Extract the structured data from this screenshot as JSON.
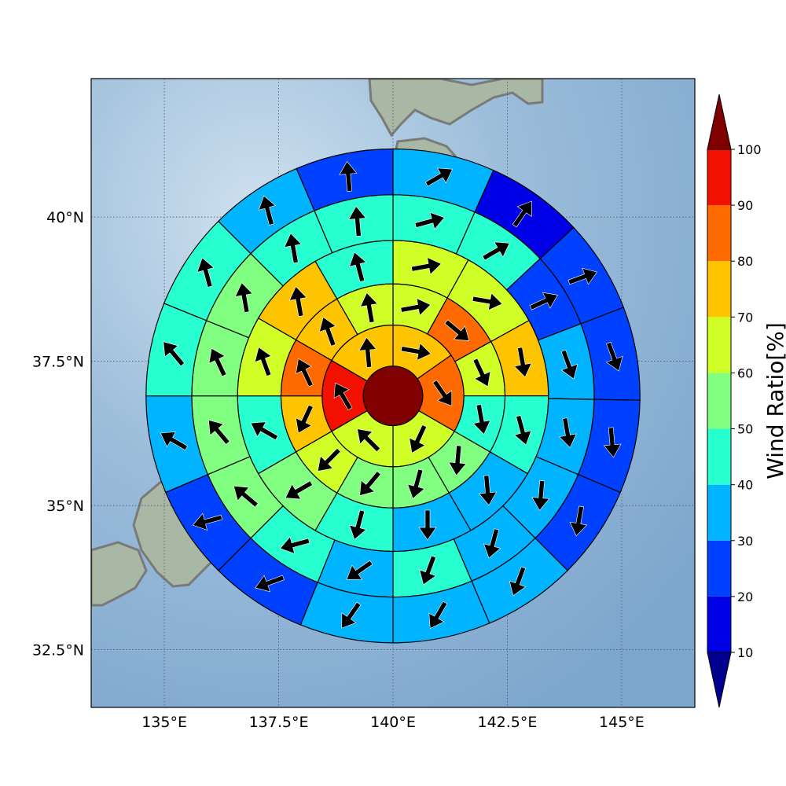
{
  "chart_data": {
    "type": "polar-sector-map",
    "map": {
      "lon_range": [
        133.4,
        146.6
      ],
      "lat_range": [
        31.5,
        42.4
      ],
      "lon_ticks": [
        135,
        137.5,
        140,
        142.5,
        145
      ],
      "lat_ticks": [
        32.5,
        35,
        37.5,
        40
      ],
      "lon_tick_labels": [
        "135°E",
        "137.5°E",
        "140°E",
        "142.5°E",
        "145°E"
      ],
      "lat_tick_labels": [
        "32.5°N",
        "35°N",
        "37.5°N",
        "40°N"
      ],
      "grid": true,
      "center": [
        140.0,
        36.9
      ]
    },
    "rings_deg": [
      0.65,
      1.55,
      2.45,
      3.4,
      4.4,
      5.4
    ],
    "sector_bounds_deg": {
      "ring2": [
        0,
        55,
        120,
        180,
        240,
        300,
        360
      ],
      "ring3": [
        0,
        29,
        61,
        90,
        120,
        150,
        180,
        210,
        240,
        270,
        300,
        330,
        360
      ],
      "ring4": [
        0,
        29,
        61,
        90,
        120,
        150,
        180,
        210,
        240,
        270,
        300,
        330,
        360
      ],
      "ring5": [
        0,
        24,
        47,
        69,
        91,
        113,
        135,
        157,
        180,
        202,
        225,
        247,
        270,
        292,
        315,
        337,
        360
      ],
      "ring6": [
        0,
        24,
        47,
        69,
        91,
        113,
        135,
        157,
        180,
        202,
        225,
        247,
        270,
        292,
        315,
        337,
        360
      ]
    },
    "center_value": 100,
    "rings": [
      {
        "values": [
          75,
          80,
          60,
          60,
          95,
          75
        ],
        "wind_dir": [
          100,
          145,
          205,
          315,
          330,
          355
        ]
      },
      {
        "values": [
          65,
          80,
          60,
          45,
          55,
          55,
          55,
          65,
          75,
          80,
          70,
          60
        ],
        "wind_dir": [
          80,
          130,
          155,
          170,
          185,
          195,
          220,
          225,
          205,
          335,
          340,
          350
        ]
      },
      {
        "values": [
          65,
          65,
          75,
          45,
          35,
          35,
          45,
          55,
          45,
          65,
          75,
          45
        ],
        "wind_dir": [
          80,
          100,
          170,
          165,
          175,
          180,
          195,
          240,
          300,
          340,
          350,
          345
        ]
      },
      {
        "values": [
          45,
          45,
          25,
          35,
          35,
          35,
          35,
          45,
          35,
          45,
          55,
          55,
          55,
          55,
          45,
          45
        ],
        "wind_dir": [
          75,
          60,
          65,
          160,
          170,
          185,
          195,
          200,
          235,
          255,
          310,
          320,
          335,
          350,
          350,
          355
        ]
      },
      {
        "values": [
          35,
          15,
          25,
          25,
          25,
          25,
          35,
          35,
          35,
          25,
          25,
          35,
          45,
          45,
          35,
          25
        ],
        "wind_dir": [
          60,
          35,
          70,
          160,
          175,
          190,
          200,
          210,
          215,
          250,
          255,
          300,
          320,
          345,
          345,
          355
        ]
      }
    ],
    "colorbar": {
      "label": "Wind Ratio[%]",
      "ticks": [
        10,
        20,
        30,
        40,
        50,
        60,
        70,
        80,
        90,
        100
      ],
      "under_color": "#00008f",
      "over_color": "#800000",
      "colors": [
        "#0000e6",
        "#0040ff",
        "#00b4ff",
        "#28ffd0",
        "#80ff80",
        "#d0ff28",
        "#ffc400",
        "#ff6a00",
        "#f21000"
      ]
    },
    "land_color": "#9cae9c",
    "ocean_color": "#9fbfdb",
    "coast_color": "#7a7a7a"
  }
}
